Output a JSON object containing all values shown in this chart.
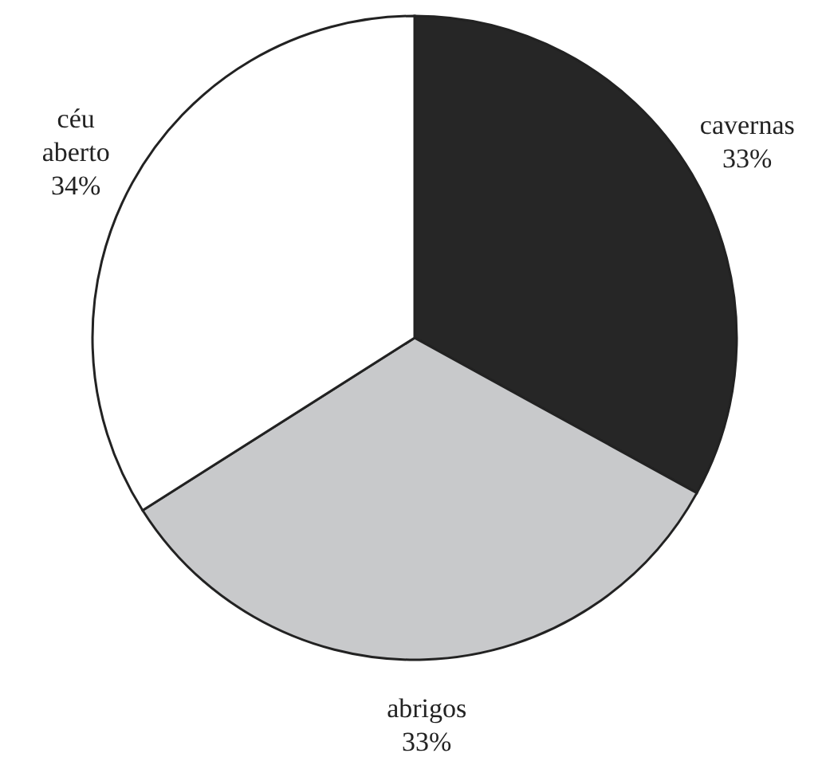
{
  "chart_data": {
    "type": "pie",
    "categories": [
      "cavernas",
      "abrigos",
      "céu aberto"
    ],
    "values": [
      33,
      33,
      34
    ],
    "colors": [
      "#262626",
      "#c8c9cb",
      "#ffffff"
    ],
    "value_labels": [
      "33%",
      "33%",
      "34%"
    ]
  }
}
